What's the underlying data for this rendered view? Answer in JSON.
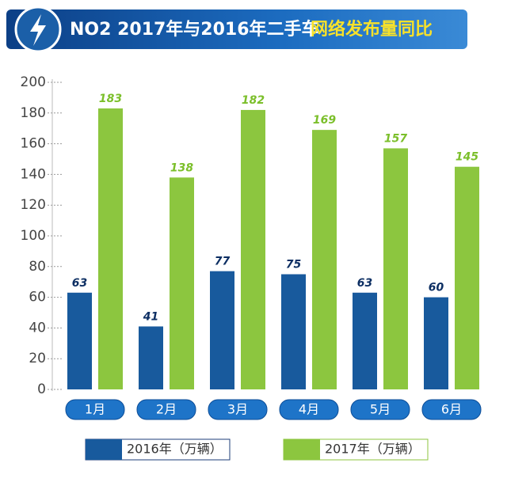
{
  "chart_data": {
    "type": "bar",
    "title": {
      "main": "NO2 2017年与2016年二手车",
      "highlight": "网络发布量同比"
    },
    "categories": [
      "1月",
      "2月",
      "3月",
      "4月",
      "5月",
      "6月"
    ],
    "series": [
      {
        "name": "2016年（万辆）",
        "color": "#185a9d",
        "values": [
          63,
          41,
          77,
          75,
          63,
          60
        ]
      },
      {
        "name": "2017年（万辆）",
        "color": "#8cc63f",
        "values": [
          183,
          138,
          182,
          169,
          157,
          145
        ]
      }
    ],
    "ylim": [
      0,
      200
    ],
    "yticks": [
      0,
      20,
      40,
      60,
      80,
      100,
      120,
      140,
      160,
      180,
      200
    ]
  }
}
